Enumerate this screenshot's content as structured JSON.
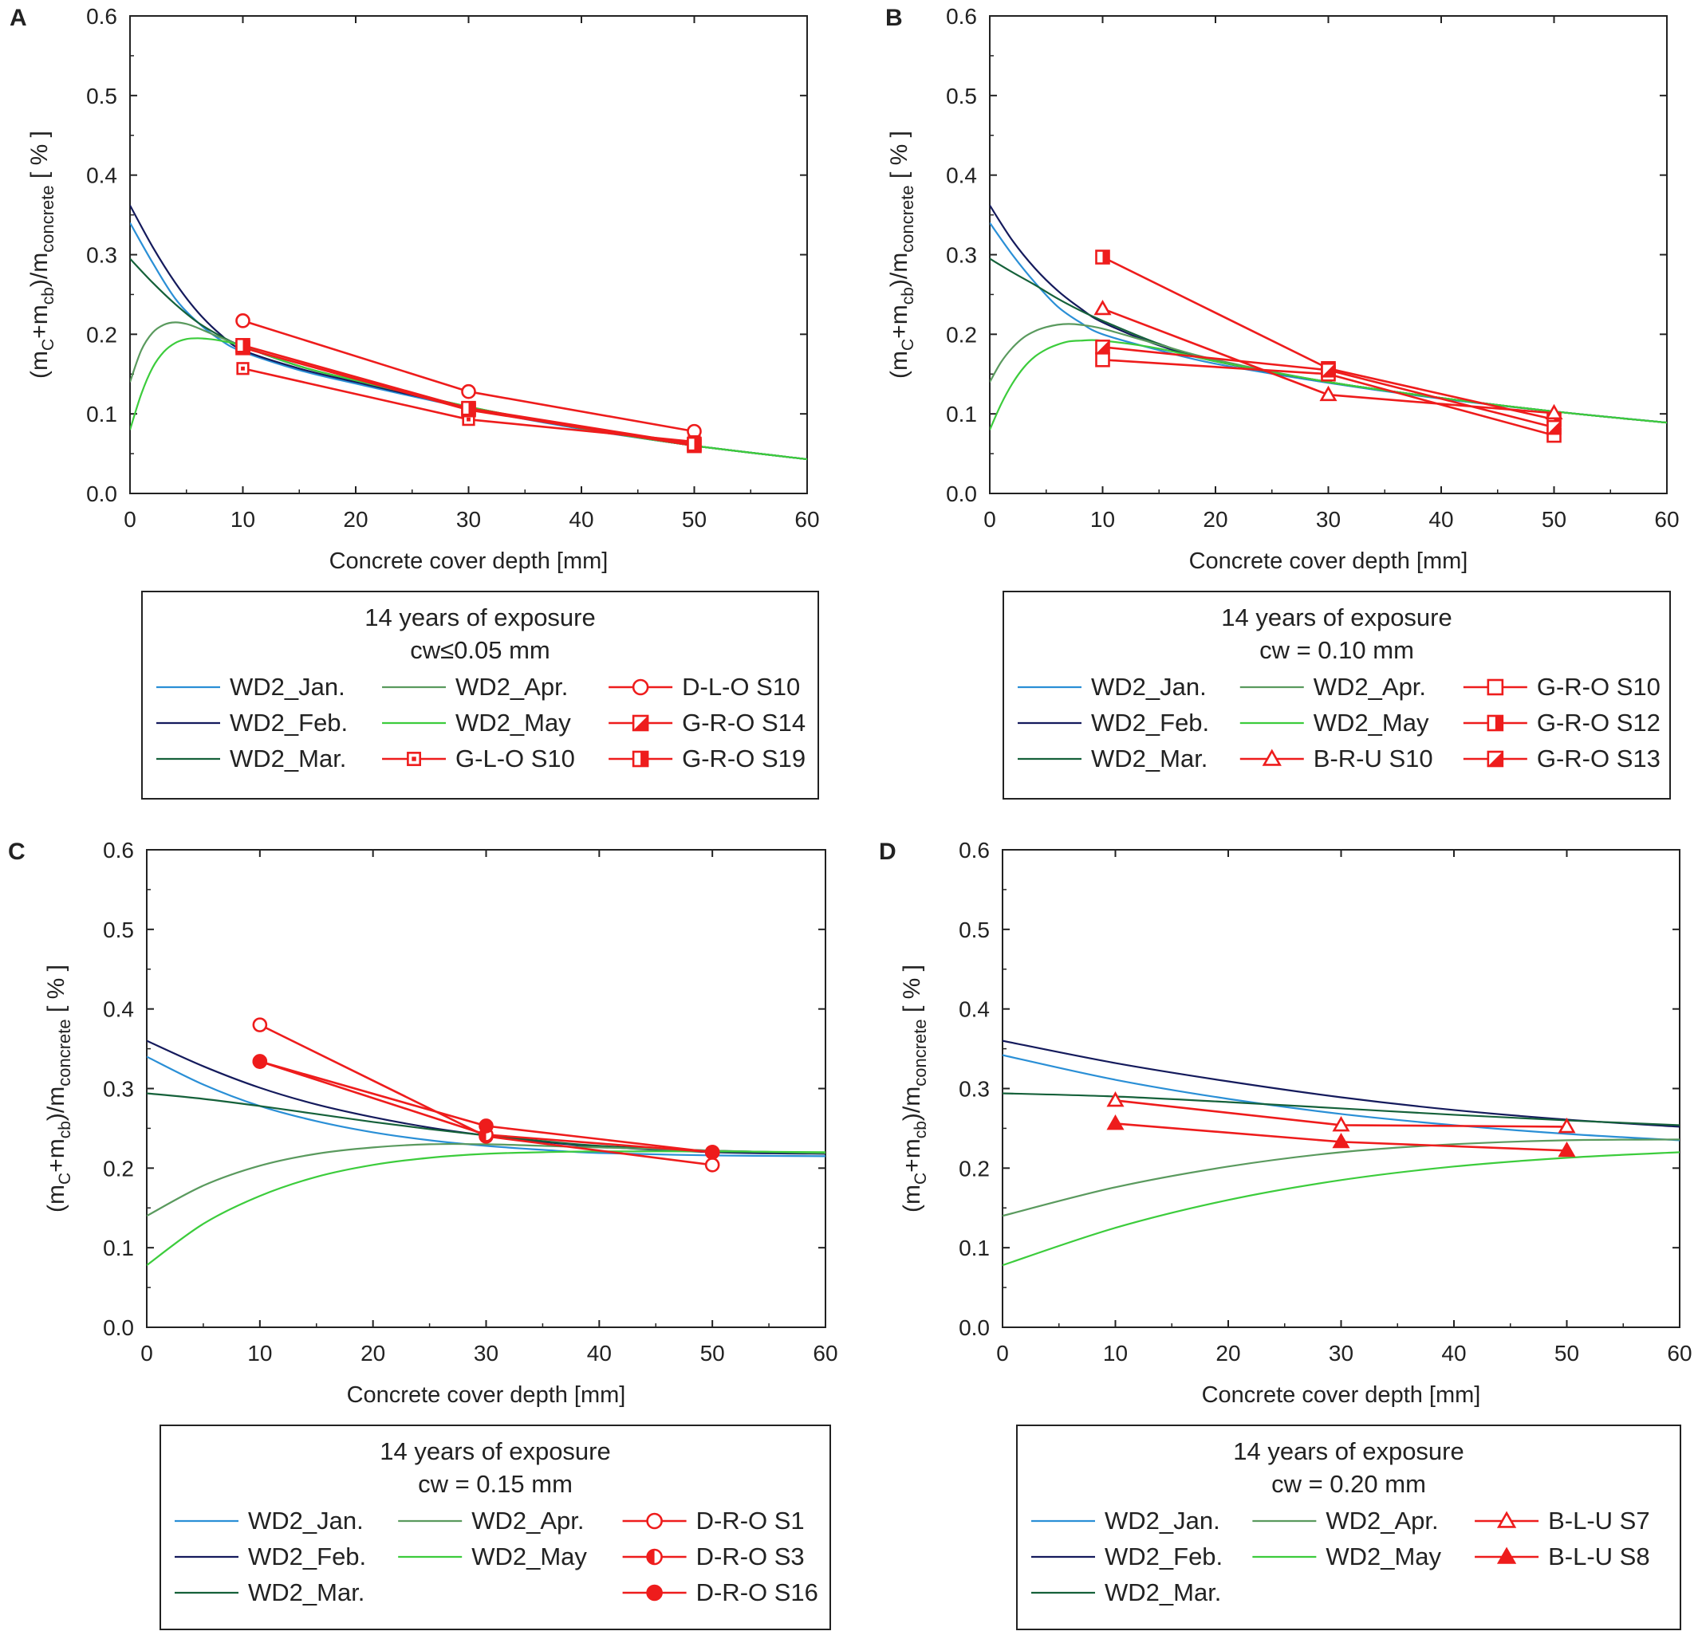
{
  "figure": {
    "x_tick_labels": [
      "0",
      "10",
      "20",
      "30",
      "40",
      "50",
      "60"
    ],
    "y_tick_labels": [
      "0.0",
      "0.1",
      "0.2",
      "0.3",
      "0.4",
      "0.5",
      "0.6"
    ]
  },
  "model_series_colors": {
    "WD2_Jan.": "#2a8fd6",
    "WD2_Feb.": "#141a5c",
    "WD2_Mar.": "#15613a",
    "WD2_Apr.": "#5a9a5e",
    "WD2_May": "#3ccc3c"
  },
  "marker_color": "#ee1c1c",
  "chart_data": [
    {
      "type": "line",
      "panel": "A",
      "xlabel": "Concrete cover depth [mm]",
      "ylabel": "(mC+mcb)/mconcrete [ % ]",
      "xlim": [
        0,
        60
      ],
      "ylim": [
        0,
        0.6
      ],
      "legend": {
        "title": "14 years of exposure",
        "subtitle": "cw≤0.05 mm",
        "entries": [
          "WD2_Jan.",
          "WD2_Feb.",
          "WD2_Mar.",
          "WD2_Apr.",
          "WD2_May",
          "G-L-O S10",
          "D-L-O S10",
          "G-R-O S14",
          "G-R-O S19"
        ]
      },
      "model_curves": [
        {
          "name": "WD2_Jan.",
          "x": [
            0,
            2,
            4,
            6,
            8,
            10,
            15,
            20,
            30,
            40,
            50,
            60
          ],
          "y": [
            0.34,
            0.29,
            0.245,
            0.215,
            0.193,
            0.178,
            0.155,
            0.138,
            0.107,
            0.081,
            0.06,
            0.043
          ]
        },
        {
          "name": "WD2_Feb.",
          "x": [
            0,
            2,
            4,
            6,
            8,
            10,
            15,
            20,
            30,
            40,
            50,
            60
          ],
          "y": [
            0.362,
            0.31,
            0.265,
            0.228,
            0.2,
            0.18,
            0.157,
            0.14,
            0.108,
            0.082,
            0.06,
            0.043
          ]
        },
        {
          "name": "WD2_Mar.",
          "x": [
            0,
            2,
            4,
            6,
            8,
            10,
            15,
            20,
            30,
            40,
            50,
            60
          ],
          "y": [
            0.295,
            0.265,
            0.238,
            0.215,
            0.198,
            0.185,
            0.16,
            0.142,
            0.109,
            0.082,
            0.06,
            0.043
          ]
        },
        {
          "name": "WD2_Apr.",
          "x": [
            0,
            1,
            2,
            3,
            4,
            5,
            6,
            8,
            10,
            15,
            20,
            30,
            40,
            50,
            60
          ],
          "y": [
            0.14,
            0.18,
            0.202,
            0.212,
            0.215,
            0.213,
            0.208,
            0.196,
            0.185,
            0.16,
            0.142,
            0.109,
            0.082,
            0.06,
            0.043
          ]
        },
        {
          "name": "WD2_May",
          "x": [
            0,
            1,
            2,
            3,
            4,
            5,
            6,
            7,
            8,
            10,
            15,
            20,
            30,
            40,
            50,
            60
          ],
          "y": [
            0.08,
            0.125,
            0.158,
            0.178,
            0.189,
            0.194,
            0.195,
            0.194,
            0.192,
            0.185,
            0.16,
            0.142,
            0.109,
            0.082,
            0.06,
            0.043
          ]
        }
      ],
      "measured": [
        {
          "name": "D-L-O S10",
          "marker": "circle-open",
          "x": [
            10,
            30,
            50
          ],
          "y": [
            0.217,
            0.128,
            0.078
          ]
        },
        {
          "name": "G-L-O S10",
          "marker": "square-dot",
          "x": [
            10,
            30,
            50
          ],
          "y": [
            0.157,
            0.093,
            0.065
          ]
        },
        {
          "name": "G-R-O S14",
          "marker": "square-diag",
          "x": [
            10,
            30,
            50
          ],
          "y": [
            0.183,
            0.105,
            0.06
          ]
        },
        {
          "name": "G-R-O S19",
          "marker": "square-half",
          "x": [
            10,
            30,
            50
          ],
          "y": [
            0.186,
            0.107,
            0.062
          ]
        }
      ]
    },
    {
      "type": "line",
      "panel": "B",
      "xlabel": "Concrete cover depth [mm]",
      "ylabel": "(mC+mcb)/mconcrete [ % ]",
      "xlim": [
        0,
        60
      ],
      "ylim": [
        0,
        0.6
      ],
      "legend": {
        "title": "14 years of exposure",
        "subtitle": "cw = 0.10 mm",
        "entries": [
          "WD2_Jan.",
          "WD2_Feb.",
          "WD2_Mar.",
          "WD2_Apr.",
          "WD2_May",
          "B-R-U S10",
          "G-R-O S10",
          "G-R-O S12",
          "G-R-O S13"
        ]
      },
      "model_curves": [
        {
          "name": "WD2_Jan.",
          "x": [
            0,
            2,
            4,
            6,
            8,
            10,
            15,
            20,
            30,
            40,
            50,
            60
          ],
          "y": [
            0.34,
            0.3,
            0.265,
            0.235,
            0.215,
            0.2,
            0.18,
            0.163,
            0.139,
            0.119,
            0.103,
            0.089
          ]
        },
        {
          "name": "WD2_Feb.",
          "x": [
            0,
            2,
            4,
            6,
            8,
            10,
            15,
            20,
            30,
            40,
            50,
            60
          ],
          "y": [
            0.362,
            0.318,
            0.283,
            0.255,
            0.233,
            0.215,
            0.186,
            0.166,
            0.14,
            0.12,
            0.103,
            0.089
          ]
        },
        {
          "name": "WD2_Mar.",
          "x": [
            0,
            2,
            4,
            6,
            8,
            10,
            15,
            20,
            30,
            40,
            50,
            60
          ],
          "y": [
            0.295,
            0.278,
            0.262,
            0.245,
            0.23,
            0.217,
            0.188,
            0.167,
            0.14,
            0.12,
            0.103,
            0.089
          ]
        },
        {
          "name": "WD2_Apr.",
          "x": [
            0,
            1,
            2,
            3,
            4,
            5,
            6,
            7,
            8,
            10,
            15,
            20,
            30,
            40,
            50,
            60
          ],
          "y": [
            0.14,
            0.165,
            0.183,
            0.196,
            0.204,
            0.209,
            0.212,
            0.213,
            0.212,
            0.207,
            0.187,
            0.168,
            0.14,
            0.12,
            0.103,
            0.089
          ]
        },
        {
          "name": "WD2_May",
          "x": [
            0,
            1,
            2,
            3,
            4,
            5,
            6,
            7,
            8,
            10,
            15,
            20,
            30,
            40,
            50,
            60
          ],
          "y": [
            0.08,
            0.112,
            0.138,
            0.158,
            0.172,
            0.181,
            0.187,
            0.191,
            0.192,
            0.192,
            0.182,
            0.166,
            0.14,
            0.12,
            0.103,
            0.089
          ]
        }
      ],
      "measured": [
        {
          "name": "G-R-O S10",
          "marker": "square-open",
          "x": [
            10,
            30,
            50
          ],
          "y": [
            0.168,
            0.15,
            0.073
          ]
        },
        {
          "name": "G-R-O S12",
          "marker": "square-half",
          "x": [
            10,
            30,
            50
          ],
          "y": [
            0.297,
            0.157,
            0.093
          ]
        },
        {
          "name": "B-R-U S10",
          "marker": "triangle-open",
          "x": [
            10,
            30,
            50
          ],
          "y": [
            0.232,
            0.124,
            0.101
          ]
        },
        {
          "name": "G-R-O S13",
          "marker": "square-diag",
          "x": [
            10,
            30,
            50
          ],
          "y": [
            0.184,
            0.155,
            0.083
          ]
        }
      ]
    },
    {
      "type": "line",
      "panel": "C",
      "xlabel": "Concrete cover depth [mm]",
      "ylabel": "(mC+mcb)/mconcrete [ % ]",
      "xlim": [
        0,
        60
      ],
      "ylim": [
        0,
        0.6
      ],
      "legend": {
        "title": "14 years of exposure",
        "subtitle": "cw = 0.15 mm",
        "entries": [
          "WD2_Jan.",
          "WD2_Feb.",
          "WD2_Mar.",
          "WD2_Apr.",
          "WD2_May",
          "D-R-O S1",
          "D-R-O S3",
          "D-R-O S16"
        ]
      },
      "model_curves": [
        {
          "name": "WD2_Jan.",
          "x": [
            0,
            5,
            10,
            15,
            20,
            25,
            30,
            35,
            40,
            50,
            60
          ],
          "y": [
            0.34,
            0.305,
            0.278,
            0.259,
            0.245,
            0.235,
            0.228,
            0.223,
            0.219,
            0.216,
            0.215
          ]
        },
        {
          "name": "WD2_Feb.",
          "x": [
            0,
            5,
            10,
            15,
            20,
            25,
            30,
            35,
            40,
            50,
            60
          ],
          "y": [
            0.36,
            0.328,
            0.301,
            0.28,
            0.264,
            0.251,
            0.241,
            0.233,
            0.227,
            0.22,
            0.218
          ]
        },
        {
          "name": "WD2_Mar.",
          "x": [
            0,
            5,
            10,
            15,
            20,
            25,
            30,
            35,
            40,
            50,
            60
          ],
          "y": [
            0.294,
            0.287,
            0.278,
            0.268,
            0.258,
            0.249,
            0.241,
            0.234,
            0.228,
            0.222,
            0.219
          ]
        },
        {
          "name": "WD2_Apr.",
          "x": [
            0,
            5,
            10,
            15,
            20,
            25,
            30,
            35,
            40,
            50,
            60
          ],
          "y": [
            0.14,
            0.178,
            0.203,
            0.218,
            0.226,
            0.23,
            0.23,
            0.228,
            0.226,
            0.222,
            0.219
          ]
        },
        {
          "name": "WD2_May",
          "x": [
            0,
            5,
            10,
            15,
            20,
            25,
            30,
            35,
            40,
            50,
            60
          ],
          "y": [
            0.078,
            0.13,
            0.165,
            0.189,
            0.204,
            0.213,
            0.218,
            0.22,
            0.221,
            0.221,
            0.22
          ]
        }
      ],
      "measured": [
        {
          "name": "D-R-O S1",
          "marker": "circle-open",
          "x": [
            10,
            30,
            50
          ],
          "y": [
            0.38,
            0.24,
            0.204
          ]
        },
        {
          "name": "D-R-O S3",
          "marker": "circle-half",
          "x": [
            10,
            30,
            50
          ],
          "y": [
            0.334,
            0.242,
            0.22
          ]
        },
        {
          "name": "D-R-O S16",
          "marker": "circle-filled",
          "x": [
            10,
            30,
            50
          ],
          "y": [
            0.334,
            0.253,
            0.22
          ]
        }
      ]
    },
    {
      "type": "line",
      "panel": "D",
      "xlabel": "Concrete cover depth [mm]",
      "ylabel": "(mC+mcb)/mconcrete [ % ]",
      "xlim": [
        0,
        60
      ],
      "ylim": [
        0,
        0.6
      ],
      "legend": {
        "title": "14 years of exposure",
        "subtitle": "cw = 0.20 mm",
        "entries": [
          "WD2_Jan.",
          "WD2_Feb.",
          "WD2_Mar.",
          "WD2_Apr.",
          "WD2_May",
          "B-L-U S7",
          "B-L-U S8"
        ]
      },
      "model_curves": [
        {
          "name": "WD2_Jan.",
          "x": [
            0,
            10,
            20,
            30,
            40,
            50,
            60
          ],
          "y": [
            0.342,
            0.311,
            0.287,
            0.268,
            0.254,
            0.243,
            0.235
          ]
        },
        {
          "name": "WD2_Feb.",
          "x": [
            0,
            10,
            20,
            30,
            40,
            50,
            60
          ],
          "y": [
            0.36,
            0.332,
            0.309,
            0.289,
            0.273,
            0.261,
            0.252
          ]
        },
        {
          "name": "WD2_Mar.",
          "x": [
            0,
            10,
            20,
            30,
            40,
            50,
            60
          ],
          "y": [
            0.294,
            0.29,
            0.283,
            0.275,
            0.267,
            0.26,
            0.254
          ]
        },
        {
          "name": "WD2_Apr.",
          "x": [
            0,
            10,
            20,
            30,
            40,
            50,
            60
          ],
          "y": [
            0.14,
            0.176,
            0.202,
            0.22,
            0.23,
            0.235,
            0.236
          ]
        },
        {
          "name": "WD2_May",
          "x": [
            0,
            10,
            20,
            30,
            40,
            50,
            60
          ],
          "y": [
            0.078,
            0.125,
            0.16,
            0.185,
            0.202,
            0.213,
            0.22
          ]
        }
      ],
      "measured": [
        {
          "name": "B-L-U S7",
          "marker": "triangle-open",
          "x": [
            10,
            30,
            50
          ],
          "y": [
            0.285,
            0.254,
            0.252
          ]
        },
        {
          "name": "B-L-U S8",
          "marker": "triangle-filled",
          "x": [
            10,
            30,
            50
          ],
          "y": [
            0.256,
            0.233,
            0.222
          ]
        }
      ]
    }
  ]
}
